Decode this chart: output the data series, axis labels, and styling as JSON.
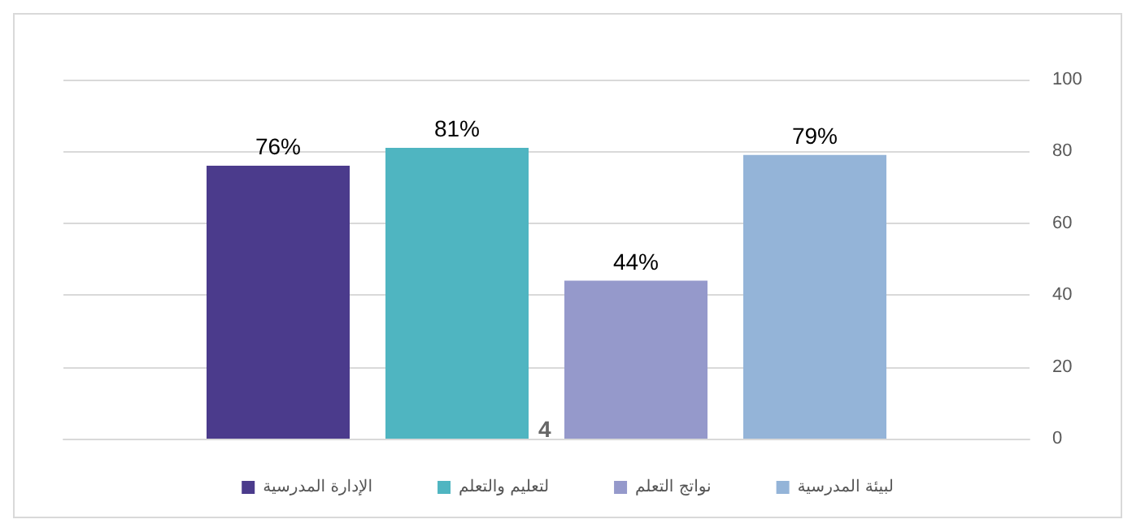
{
  "chart_data": {
    "type": "bar",
    "categories": [
      null
    ],
    "series": [
      {
        "name": "الإدارة المدرسية",
        "color": "#4b3b8c",
        "values": [
          76
        ],
        "value_labels": [
          "76%"
        ]
      },
      {
        "name": "لتعليم والتعلم",
        "color": "#4fb5c1",
        "values": [
          81
        ],
        "value_labels": [
          "81%"
        ]
      },
      {
        "name": "نواتج التعلم",
        "color": "#9599cb",
        "values": [
          44
        ],
        "value_labels": [
          "44%"
        ]
      },
      {
        "name": "لبيئة المدرسية",
        "color": "#94b4d8",
        "values": [
          79
        ],
        "value_labels": [
          "79%"
        ]
      }
    ],
    "ylim": [
      0,
      100
    ],
    "yticks": [
      0,
      20,
      40,
      60,
      80,
      100
    ],
    "grid": "y",
    "legend": "bottom",
    "annotations": [
      "4"
    ]
  }
}
